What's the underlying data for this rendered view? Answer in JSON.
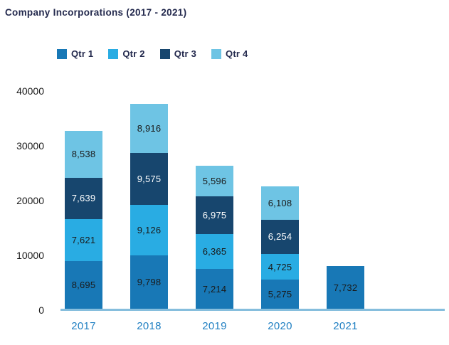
{
  "title": "Company Incorporations (2017 - 2021)",
  "colors": {
    "title_text": "#23294D",
    "legend_text": "#23294D",
    "axis_tick_text": "#1A1A1A",
    "year_label_text": "#1F7FC2",
    "baseline": "#86BEDD",
    "background": "#ffffff",
    "label_on_dark": "#ffffff",
    "label_on_light": "#1A1A1A"
  },
  "chart_data": {
    "type": "bar",
    "stacked": true,
    "title": "Company Incorporations (2017 - 2021)",
    "xlabel": "",
    "ylabel": "",
    "categories": [
      "2017",
      "2018",
      "2019",
      "2020",
      "2021"
    ],
    "series": [
      {
        "name": "Qtr 1",
        "color": "#1878B6",
        "label_color": "#1A1A1A",
        "values": [
          8695,
          9798,
          7214,
          5275,
          7732
        ]
      },
      {
        "name": "Qtr 2",
        "color": "#29ACE3",
        "label_color": "#1A1A1A",
        "values": [
          7621,
          9126,
          6365,
          4725,
          null
        ]
      },
      {
        "name": "Qtr 3",
        "color": "#17466E",
        "label_color": "#FFFFFF",
        "values": [
          7639,
          9575,
          6975,
          6254,
          null
        ]
      },
      {
        "name": "Qtr 4",
        "color": "#6EC4E4",
        "label_color": "#1A1A1A",
        "values": [
          8538,
          8916,
          5596,
          6108,
          null
        ]
      }
    ],
    "segment_labels": {
      "2017": [
        "8,695",
        "7,621",
        "7,639",
        "8,538"
      ],
      "2018": [
        "9,798",
        "9,126",
        "9,575",
        "8,916"
      ],
      "2019": [
        "7,214",
        "6,365",
        "6,975",
        "5,596"
      ],
      "2020": [
        "5,275",
        "4,725",
        "6,254",
        "6,108"
      ],
      "2021": [
        "7,732"
      ]
    },
    "y_ticks": [
      0,
      10000,
      20000,
      30000,
      40000
    ],
    "ylim": [
      0,
      40000
    ],
    "grid": false,
    "legend_position": "top",
    "value_format": "thousands-comma"
  }
}
